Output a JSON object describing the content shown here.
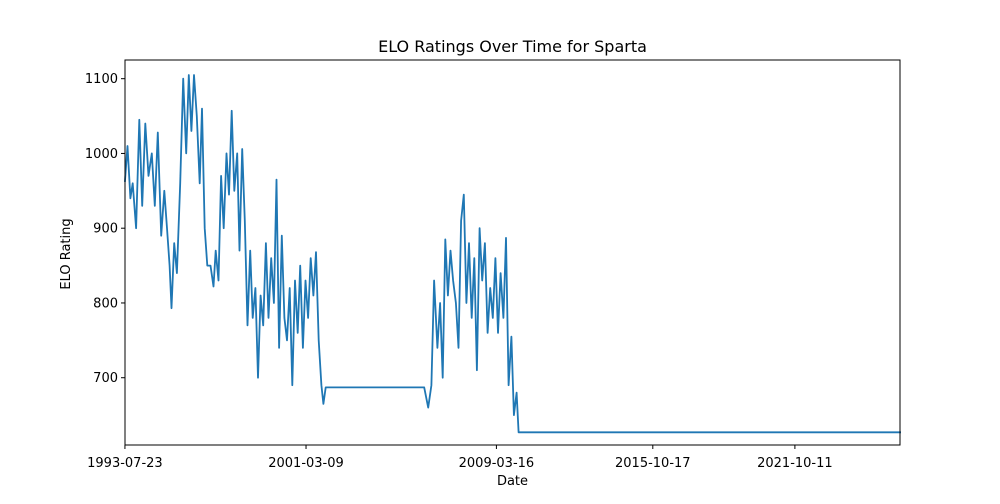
{
  "chart_data": {
    "type": "line",
    "title": "ELO Ratings Over Time for Sparta",
    "xlabel": "Date",
    "ylabel": "ELO Rating",
    "x_ticks": [
      "1993-07-23",
      "2001-03-09",
      "2009-03-16",
      "2015-10-17",
      "2021-10-11"
    ],
    "y_ticks": [
      700,
      800,
      900,
      1000,
      1100
    ],
    "ylim": [
      610,
      1125
    ],
    "xlim": [
      "1993-07-23",
      "2026-04-01"
    ],
    "grid": false,
    "color": "#1f77b4",
    "series": [
      {
        "values": [
          [
            "1993-07-23",
            962
          ],
          [
            "1993-09-01",
            1010
          ],
          [
            "1993-10-15",
            940
          ],
          [
            "1993-11-20",
            960
          ],
          [
            "1994-01-10",
            900
          ],
          [
            "1994-03-01",
            1045
          ],
          [
            "1994-04-15",
            930
          ],
          [
            "1994-06-01",
            1040
          ],
          [
            "1994-07-20",
            970
          ],
          [
            "1994-09-10",
            1000
          ],
          [
            "1994-10-25",
            930
          ],
          [
            "1994-12-10",
            1028
          ],
          [
            "1995-02-01",
            890
          ],
          [
            "1995-03-20",
            950
          ],
          [
            "1995-05-01",
            900
          ],
          [
            "1995-06-10",
            850
          ],
          [
            "1995-07-10",
            793
          ],
          [
            "1995-08-20",
            880
          ],
          [
            "1995-10-01",
            840
          ],
          [
            "1995-11-20",
            960
          ],
          [
            "1996-01-05",
            1100
          ],
          [
            "1996-02-20",
            1000
          ],
          [
            "1996-04-01",
            1105
          ],
          [
            "1996-05-10",
            1030
          ],
          [
            "1996-06-20",
            1105
          ],
          [
            "1996-08-01",
            1050
          ],
          [
            "1996-09-15",
            960
          ],
          [
            "1996-10-20",
            1060
          ],
          [
            "1996-12-01",
            900
          ],
          [
            "1997-01-10",
            850
          ],
          [
            "1997-03-01",
            850
          ],
          [
            "1997-04-15",
            822
          ],
          [
            "1997-05-20",
            870
          ],
          [
            "1997-07-01",
            830
          ],
          [
            "1997-08-10",
            970
          ],
          [
            "1997-09-20",
            900
          ],
          [
            "1997-11-01",
            1000
          ],
          [
            "1997-12-10",
            945
          ],
          [
            "1998-01-20",
            1057
          ],
          [
            "1998-03-01",
            950
          ],
          [
            "1998-04-15",
            1000
          ],
          [
            "1998-05-20",
            870
          ],
          [
            "1998-07-01",
            1006
          ],
          [
            "1998-08-10",
            910
          ],
          [
            "1998-09-20",
            770
          ],
          [
            "1998-11-01",
            870
          ],
          [
            "1998-12-10",
            780
          ],
          [
            "1999-01-20",
            820
          ],
          [
            "1999-03-01",
            700
          ],
          [
            "1999-04-10",
            810
          ],
          [
            "1999-05-20",
            770
          ],
          [
            "1999-07-01",
            880
          ],
          [
            "1999-08-10",
            780
          ],
          [
            "1999-09-20",
            860
          ],
          [
            "1999-11-01",
            800
          ],
          [
            "1999-12-10",
            965
          ],
          [
            "2000-01-20",
            740
          ],
          [
            "2000-03-01",
            890
          ],
          [
            "2000-04-10",
            780
          ],
          [
            "2000-05-20",
            750
          ],
          [
            "2000-07-01",
            820
          ],
          [
            "2000-08-10",
            690
          ],
          [
            "2000-09-20",
            830
          ],
          [
            "2000-11-01",
            760
          ],
          [
            "2000-12-10",
            850
          ],
          [
            "2001-01-20",
            740
          ],
          [
            "2001-03-01",
            830
          ],
          [
            "2001-04-10",
            780
          ],
          [
            "2001-05-20",
            860
          ],
          [
            "2001-07-01",
            810
          ],
          [
            "2001-08-10",
            868
          ],
          [
            "2001-09-20",
            750
          ],
          [
            "2001-11-01",
            690
          ],
          [
            "2001-12-01",
            665
          ],
          [
            "2002-01-05",
            687
          ],
          [
            "2003-06-01",
            687
          ],
          [
            "2004-03-01",
            687
          ],
          [
            "2006-03-01",
            687
          ],
          [
            "2006-05-01",
            660
          ],
          [
            "2006-06-20",
            690
          ],
          [
            "2006-08-01",
            830
          ],
          [
            "2006-09-20",
            740
          ],
          [
            "2006-11-01",
            800
          ],
          [
            "2006-12-10",
            700
          ],
          [
            "2007-01-20",
            885
          ],
          [
            "2007-03-01",
            810
          ],
          [
            "2007-04-10",
            870
          ],
          [
            "2007-05-20",
            830
          ],
          [
            "2007-07-01",
            800
          ],
          [
            "2007-08-10",
            740
          ],
          [
            "2007-09-20",
            910
          ],
          [
            "2007-11-01",
            945
          ],
          [
            "2007-12-10",
            800
          ],
          [
            "2008-01-20",
            880
          ],
          [
            "2008-03-01",
            780
          ],
          [
            "2008-04-10",
            860
          ],
          [
            "2008-05-20",
            710
          ],
          [
            "2008-07-01",
            900
          ],
          [
            "2008-08-10",
            830
          ],
          [
            "2008-09-20",
            880
          ],
          [
            "2008-11-01",
            760
          ],
          [
            "2008-12-10",
            820
          ],
          [
            "2009-01-20",
            780
          ],
          [
            "2009-03-01",
            860
          ],
          [
            "2009-04-10",
            760
          ],
          [
            "2009-05-20",
            840
          ],
          [
            "2009-07-01",
            780
          ],
          [
            "2009-08-10",
            887
          ],
          [
            "2009-09-20",
            690
          ],
          [
            "2009-11-01",
            755
          ],
          [
            "2009-12-10",
            650
          ],
          [
            "2010-01-20",
            680
          ],
          [
            "2010-02-20",
            627
          ],
          [
            "2012-01-01",
            627
          ],
          [
            "2016-01-01",
            627
          ],
          [
            "2020-01-01",
            627
          ],
          [
            "2024-01-01",
            627
          ],
          [
            "2026-04-01",
            627
          ]
        ]
      }
    ]
  }
}
